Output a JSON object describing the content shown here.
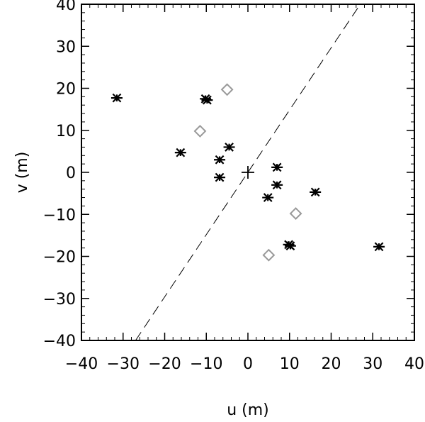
{
  "chart_data": {
    "type": "scatter",
    "xlabel": "u (m)",
    "ylabel": "v (m)",
    "xlim": [
      -40,
      40
    ],
    "ylim": [
      -40,
      40
    ],
    "xticks": [
      -40,
      -30,
      -20,
      -10,
      0,
      10,
      20,
      30,
      40
    ],
    "yticks": [
      -40,
      -30,
      -20,
      -10,
      0,
      10,
      20,
      30,
      40
    ],
    "grid": false,
    "legend": "none",
    "series": [
      {
        "marker": "asterisk",
        "color": "#000000",
        "points": [
          [
            -31.5,
            17.7
          ],
          [
            -10.2,
            17.5
          ],
          [
            -9.8,
            17.2
          ],
          [
            -16.2,
            4.7
          ],
          [
            -4.5,
            6.0
          ],
          [
            -6.8,
            3.0
          ],
          [
            -6.8,
            -1.2
          ],
          [
            7.0,
            1.2
          ],
          [
            7.0,
            -3.0
          ],
          [
            4.8,
            -6.0
          ],
          [
            16.2,
            -4.7
          ],
          [
            10.2,
            -17.5
          ],
          [
            9.8,
            -17.2
          ],
          [
            31.5,
            -17.7
          ]
        ]
      },
      {
        "marker": "diamond",
        "color": "#999999",
        "points": [
          [
            -5.0,
            19.7
          ],
          [
            -11.5,
            9.8
          ],
          [
            11.5,
            -9.8
          ],
          [
            5.0,
            -19.7
          ]
        ]
      },
      {
        "marker": "plus",
        "color": "#000000",
        "points": [
          [
            0,
            0
          ]
        ]
      }
    ],
    "reference_line": {
      "style": "dashed",
      "color": "#000000",
      "points": [
        [
          -27,
          -40
        ],
        [
          27,
          40
        ]
      ]
    }
  }
}
